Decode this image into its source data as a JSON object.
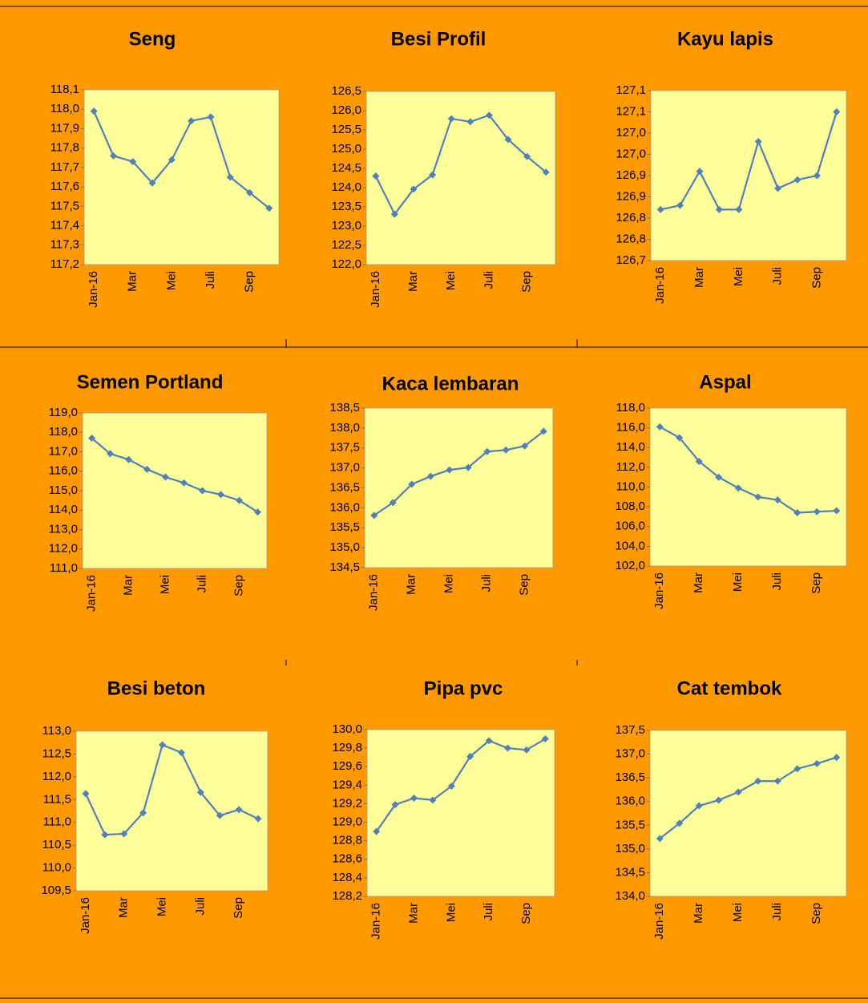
{
  "chart_data": [
    {
      "type": "line",
      "title": "Seng",
      "categories": [
        "Jan-16",
        null,
        "Mar",
        null,
        "Mei",
        null,
        "Juli",
        null,
        "Sep",
        null
      ],
      "values": [
        117.99,
        117.76,
        117.73,
        117.62,
        117.74,
        117.94,
        117.96,
        117.65,
        117.57,
        117.49
      ],
      "color": "#4f81bd",
      "ylim": [
        117.2,
        118.1
      ],
      "yticks": [
        {
          "value": 117.2,
          "label": "117,2"
        },
        {
          "value": 117.3,
          "label": "117,3"
        },
        {
          "value": 117.4,
          "label": "117,4"
        },
        {
          "value": 117.5,
          "label": "117,5"
        },
        {
          "value": 117.6,
          "label": "117,6"
        },
        {
          "value": 117.7,
          "label": "117,7"
        },
        {
          "value": 117.8,
          "label": "117,8"
        },
        {
          "value": 117.9,
          "label": "117,9"
        },
        {
          "value": 118.0,
          "label": "118,0"
        },
        {
          "value": 118.1,
          "label": "118,1"
        }
      ]
    },
    {
      "type": "line",
      "title": "Besi Profil",
      "categories": [
        "Jan-16",
        null,
        "Mar",
        null,
        "Mei",
        null,
        "Juli",
        null,
        "Sep",
        null
      ],
      "values": [
        124.3,
        123.31,
        123.96,
        124.33,
        125.79,
        125.71,
        125.88,
        125.25,
        124.81,
        124.4
      ],
      "color": "#4f81bd",
      "ylim": [
        122.0,
        126.5
      ],
      "yticks": [
        {
          "value": 122.0,
          "label": "122,0"
        },
        {
          "value": 122.5,
          "label": "122,5"
        },
        {
          "value": 123.0,
          "label": "123,0"
        },
        {
          "value": 123.5,
          "label": "123,5"
        },
        {
          "value": 124.0,
          "label": "124,0"
        },
        {
          "value": 124.5,
          "label": "124,5"
        },
        {
          "value": 125.0,
          "label": "125,0"
        },
        {
          "value": 125.5,
          "label": "125,5"
        },
        {
          "value": 126.0,
          "label": "126,0"
        },
        {
          "value": 126.5,
          "label": "126,5"
        }
      ]
    },
    {
      "type": "line",
      "title": "Kayu lapis",
      "categories": [
        "Jan-16",
        null,
        "Mar",
        null,
        "Mei",
        null,
        "Juli",
        null,
        "Sep",
        null
      ],
      "values": [
        126.82,
        126.83,
        126.91,
        126.82,
        126.82,
        126.98,
        126.87,
        126.89,
        126.9,
        127.05
      ],
      "color": "#4f81bd",
      "ylim": [
        126.7,
        127.1
      ],
      "yticks": [
        {
          "value": 126.7,
          "label": "126,7"
        },
        {
          "value": 126.75,
          "label": "126,8"
        },
        {
          "value": 126.8,
          "label": "126,8"
        },
        {
          "value": 126.85,
          "label": "126,9"
        },
        {
          "value": 126.9,
          "label": "126,9"
        },
        {
          "value": 126.95,
          "label": "127,0"
        },
        {
          "value": 127.0,
          "label": "127,0"
        },
        {
          "value": 127.05,
          "label": "127,1"
        },
        {
          "value": 127.1,
          "label": "127,1"
        }
      ]
    },
    {
      "type": "line",
      "title": "Semen Portland",
      "categories": [
        "Jan-16",
        null,
        "Mar",
        null,
        "Mei",
        null,
        "Juli",
        null,
        "Sep",
        null
      ],
      "values": [
        117.7,
        116.9,
        116.6,
        116.1,
        115.7,
        115.4,
        115.0,
        114.8,
        114.5,
        113.9
      ],
      "color": "#4f81bd",
      "ylim": [
        111.0,
        119.0
      ],
      "yticks": [
        {
          "value": 111,
          "label": "111,0"
        },
        {
          "value": 112,
          "label": "112,0"
        },
        {
          "value": 113,
          "label": "113,0"
        },
        {
          "value": 114,
          "label": "114,0"
        },
        {
          "value": 115,
          "label": "115,0"
        },
        {
          "value": 116,
          "label": "116,0"
        },
        {
          "value": 117,
          "label": "117,0"
        },
        {
          "value": 118,
          "label": "118,0"
        },
        {
          "value": 119,
          "label": "119,0"
        }
      ]
    },
    {
      "type": "line",
      "title": "Kaca lembaran",
      "categories": [
        "Jan-16",
        null,
        "Mar",
        null,
        "Mei",
        null,
        "Juli",
        null,
        "Sep",
        null
      ],
      "values": [
        135.81,
        136.13,
        136.59,
        136.79,
        136.95,
        137.01,
        137.41,
        137.45,
        137.55,
        137.92
      ],
      "color": "#4f81bd",
      "ylim": [
        134.5,
        138.5
      ],
      "yticks": [
        {
          "value": 134.5,
          "label": "134,5"
        },
        {
          "value": 135.0,
          "label": "135,0"
        },
        {
          "value": 135.5,
          "label": "135,5"
        },
        {
          "value": 136.0,
          "label": "136,0"
        },
        {
          "value": 136.5,
          "label": "136,5"
        },
        {
          "value": 137.0,
          "label": "137,0"
        },
        {
          "value": 137.5,
          "label": "137,5"
        },
        {
          "value": 138.0,
          "label": "138,0"
        },
        {
          "value": 138.5,
          "label": "138,5"
        }
      ]
    },
    {
      "type": "line",
      "title": "Aspal",
      "categories": [
        "Jan-16",
        null,
        "Mar",
        null,
        "Mei",
        null,
        "Juli",
        null,
        "Sep",
        null
      ],
      "values": [
        116.1,
        115.0,
        112.6,
        111.0,
        109.9,
        109.0,
        108.7,
        107.4,
        107.5,
        107.6
      ],
      "color": "#4f81bd",
      "ylim": [
        102.0,
        118.0
      ],
      "yticks": [
        {
          "value": 102,
          "label": "102,0"
        },
        {
          "value": 104,
          "label": "104,0"
        },
        {
          "value": 106,
          "label": "106,0"
        },
        {
          "value": 108,
          "label": "108,0"
        },
        {
          "value": 110,
          "label": "110,0"
        },
        {
          "value": 112,
          "label": "112,0"
        },
        {
          "value": 114,
          "label": "114,0"
        },
        {
          "value": 116,
          "label": "116,0"
        },
        {
          "value": 118,
          "label": "118,0"
        }
      ]
    },
    {
      "type": "line",
      "title": "Besi beton",
      "categories": [
        "Jan-16",
        null,
        "Mar",
        null,
        "Mei",
        null,
        "Juli",
        null,
        "Sep",
        null
      ],
      "values": [
        111.63,
        110.73,
        110.75,
        111.21,
        112.7,
        112.53,
        111.66,
        111.15,
        111.28,
        111.08
      ],
      "color": "#4f81bd",
      "ylim": [
        109.5,
        113.0
      ],
      "yticks": [
        {
          "value": 109.5,
          "label": "109,5"
        },
        {
          "value": 110.0,
          "label": "110,0"
        },
        {
          "value": 110.5,
          "label": "110,5"
        },
        {
          "value": 111.0,
          "label": "111,0"
        },
        {
          "value": 111.5,
          "label": "111,5"
        },
        {
          "value": 112.0,
          "label": "112,0"
        },
        {
          "value": 112.5,
          "label": "112,5"
        },
        {
          "value": 113.0,
          "label": "113,0"
        }
      ]
    },
    {
      "type": "line",
      "title": "Pipa pvc",
      "categories": [
        "Jan-16",
        null,
        "Mar",
        null,
        "Mei",
        null,
        "Juli",
        null,
        "Sep",
        null
      ],
      "values": [
        128.9,
        129.19,
        129.26,
        129.24,
        129.39,
        129.71,
        129.88,
        129.8,
        129.78,
        129.9
      ],
      "color": "#4f81bd",
      "ylim": [
        128.2,
        130.0
      ],
      "yticks": [
        {
          "value": 128.2,
          "label": "128,2"
        },
        {
          "value": 128.4,
          "label": "128,4"
        },
        {
          "value": 128.6,
          "label": "128,6"
        },
        {
          "value": 128.8,
          "label": "128,8"
        },
        {
          "value": 129.0,
          "label": "129,0"
        },
        {
          "value": 129.2,
          "label": "129,2"
        },
        {
          "value": 129.4,
          "label": "129,4"
        },
        {
          "value": 129.6,
          "label": "129,6"
        },
        {
          "value": 129.8,
          "label": "129,8"
        },
        {
          "value": 130.0,
          "label": "130,0"
        }
      ]
    },
    {
      "type": "line",
      "title": "Cat tembok",
      "categories": [
        "Jan-16",
        null,
        "Mar",
        null,
        "Mei",
        null,
        "Juli",
        null,
        "Sep",
        null
      ],
      "values": [
        135.22,
        135.54,
        135.91,
        136.03,
        136.2,
        136.43,
        136.43,
        136.69,
        136.8,
        136.93
      ],
      "color": "#4f81bd",
      "ylim": [
        134.0,
        137.5
      ],
      "yticks": [
        {
          "value": 134.0,
          "label": "134,0"
        },
        {
          "value": 134.5,
          "label": "134,5"
        },
        {
          "value": 135.0,
          "label": "135,0"
        },
        {
          "value": 135.5,
          "label": "135,5"
        },
        {
          "value": 136.0,
          "label": "136,0"
        },
        {
          "value": 136.5,
          "label": "136,5"
        },
        {
          "value": 137.0,
          "label": "137,0"
        },
        {
          "value": 137.5,
          "label": "137,5"
        }
      ]
    }
  ]
}
